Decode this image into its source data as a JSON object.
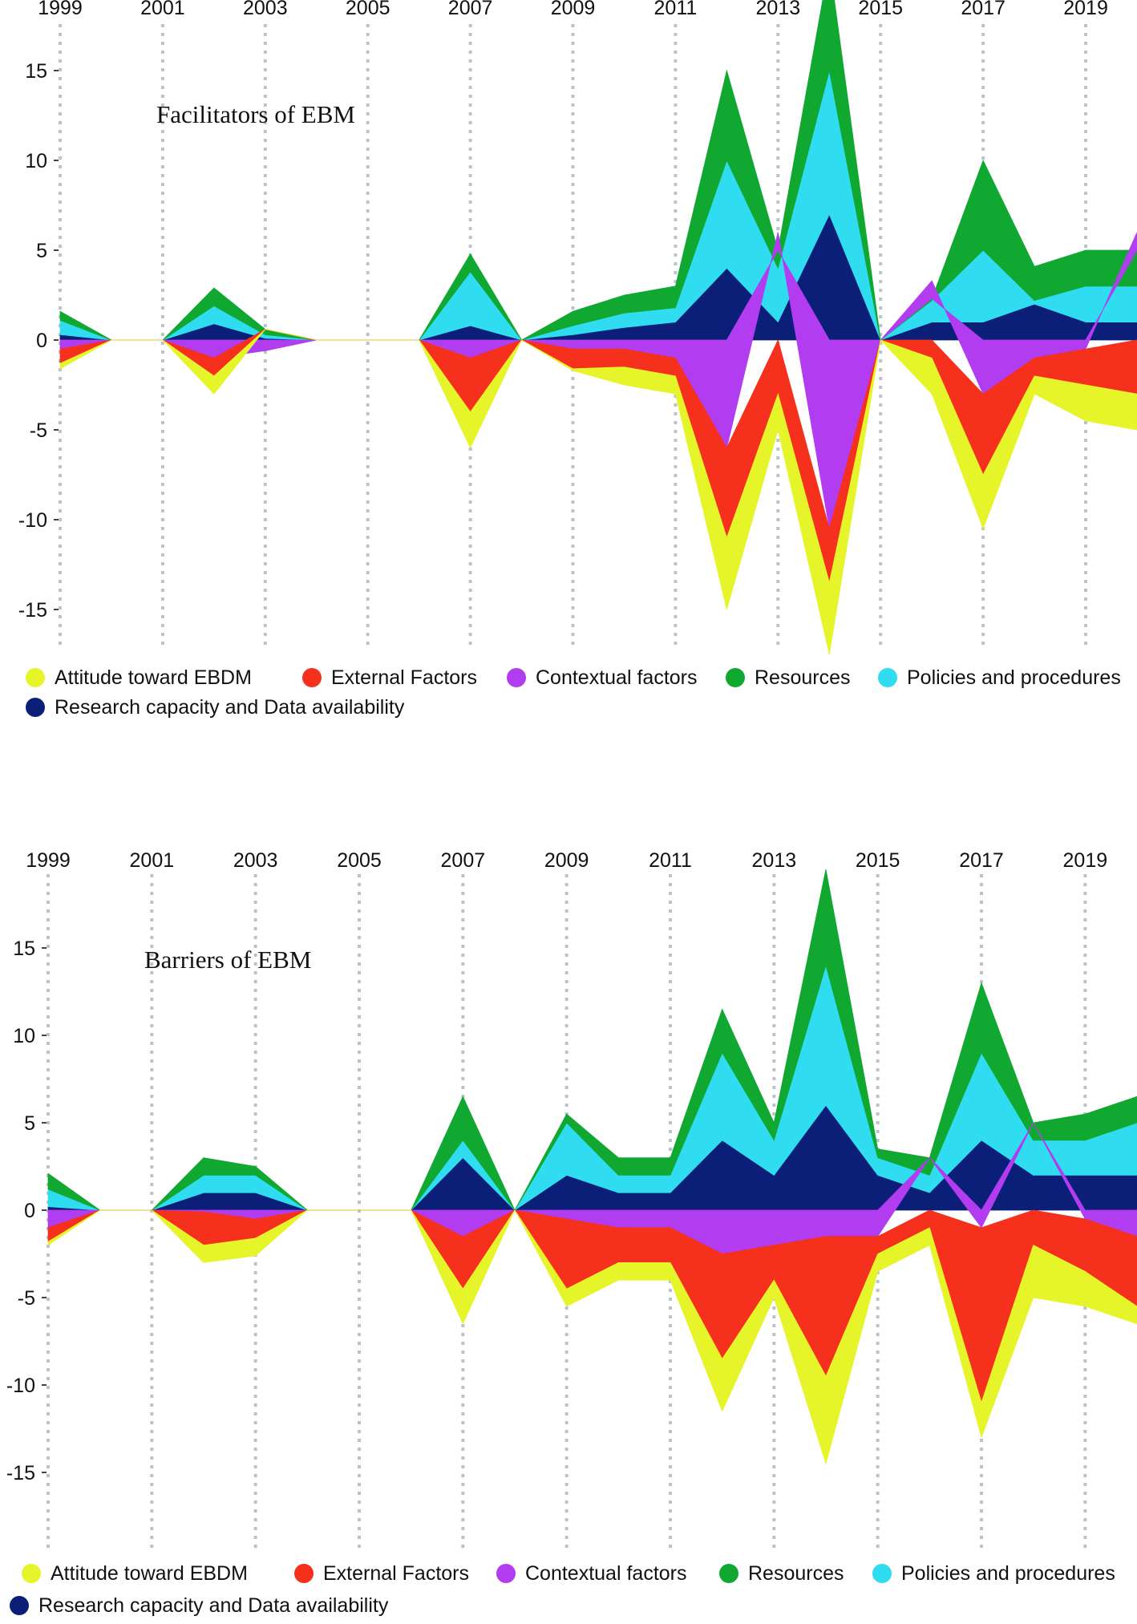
{
  "chart_data": [
    {
      "type": "area",
      "title": "Facilitators of EBM",
      "x_ticks": [
        "1999",
        "2001",
        "2003",
        "2005",
        "2007",
        "2009",
        "2011",
        "2013",
        "2015",
        "2017",
        "2019"
      ],
      "y_ticks": [
        "15",
        "10",
        "5",
        "0",
        "-5",
        "-10",
        "-15"
      ],
      "x": [
        1999,
        2000,
        2001,
        2002,
        2003,
        2004,
        2005,
        2006,
        2007,
        2008,
        2009,
        2010,
        2011,
        2012,
        2013,
        2014,
        2015,
        2016,
        2017,
        2018,
        2019,
        2020
      ],
      "xlim": [
        1999,
        2020
      ],
      "ylim": [
        -17.5,
        18
      ],
      "series": [
        {
          "name": "Research capacity and Data availability",
          "color": "#0b1f78",
          "values": [
            0.3,
            0,
            0,
            0.9,
            0.1,
            0,
            0,
            0,
            0.8,
            0,
            0.3,
            0.7,
            1.0,
            4.0,
            1.0,
            7.0,
            0,
            1.0,
            1.0,
            2.0,
            1.0,
            1.0
          ]
        },
        {
          "name": "Policies and procedures",
          "color": "#2fdcf0",
          "values": [
            0.8,
            0,
            0,
            1.0,
            0.2,
            0,
            0,
            0,
            3.0,
            0,
            0.5,
            0.8,
            0.8,
            6.0,
            3.0,
            8.0,
            0,
            1.2,
            4.0,
            0.2,
            2.0,
            2.0
          ]
        },
        {
          "name": "Resources",
          "color": "#11a832",
          "values": [
            0.5,
            0,
            0,
            1.0,
            0.3,
            0,
            0,
            0,
            1.0,
            0,
            0.8,
            1.0,
            1.2,
            5.0,
            1.0,
            6.0,
            0,
            0.1,
            5.0,
            1.9,
            2.0,
            2.0
          ]
        },
        {
          "name": "Contextual factors",
          "color": "#b23cf0",
          "values": [
            -0.5,
            0,
            0,
            -1.0,
            -0.6,
            0,
            0,
            0,
            -1.0,
            0,
            -0.5,
            -0.5,
            -1.0,
            -6.0,
            1.0,
            -10.5,
            0,
            1.0,
            -3.0,
            -1.0,
            -0.5,
            1.0
          ]
        },
        {
          "name": "External Factors",
          "color": "#f5301c",
          "values": [
            -0.8,
            0,
            0,
            -1.0,
            0,
            0,
            0,
            0,
            -3.0,
            0,
            -1.1,
            -1.0,
            -1.0,
            -5.0,
            -3.0,
            -3.0,
            0,
            -1.0,
            -4.5,
            -1.0,
            -2.0,
            -3.0
          ]
        },
        {
          "name": "Attitude toward EBDM",
          "color": "#e6f52a",
          "values": [
            -0.3,
            0,
            0,
            -1.0,
            0,
            0,
            0,
            0,
            -2.0,
            0,
            -0.1,
            -1.0,
            -1.0,
            -4.0,
            -2.0,
            -4.0,
            0,
            -2.0,
            -3.0,
            -1.0,
            -2.0,
            -2.0
          ]
        }
      ]
    },
    {
      "type": "area",
      "title": "Barriers of EBM",
      "x_ticks": [
        "1999",
        "2001",
        "2003",
        "2005",
        "2007",
        "2009",
        "2011",
        "2013",
        "2015",
        "2017",
        "2019"
      ],
      "y_ticks": [
        "15",
        "10",
        "5",
        "0",
        "-5",
        "-10",
        "-15"
      ],
      "x": [
        1999,
        2000,
        2001,
        2002,
        2003,
        2004,
        2005,
        2006,
        2007,
        2008,
        2009,
        2010,
        2011,
        2012,
        2013,
        2014,
        2015,
        2016,
        2017,
        2018,
        2019,
        2020
      ],
      "xlim": [
        1999,
        2020
      ],
      "ylim": [
        -19.5,
        19.5
      ],
      "series": [
        {
          "name": "Research capacity and Data availability",
          "color": "#0b1f78",
          "values": [
            0.2,
            0,
            0,
            1.0,
            1.0,
            0,
            0,
            0,
            3.0,
            0,
            2.0,
            1.0,
            1.0,
            4.0,
            2.0,
            6.0,
            2.0,
            1.0,
            4.0,
            2.0,
            2.0,
            2.0
          ]
        },
        {
          "name": "Policies and procedures",
          "color": "#2fdcf0",
          "values": [
            1.0,
            0,
            0,
            1.0,
            1.0,
            0,
            0,
            0,
            1.0,
            0,
            3.0,
            1.0,
            1.0,
            5.0,
            2.0,
            8.0,
            1.0,
            1.0,
            5.0,
            2.0,
            2.0,
            3.0
          ]
        },
        {
          "name": "Resources",
          "color": "#11a832",
          "values": [
            0.9,
            0,
            0,
            1.0,
            0.5,
            0,
            0,
            0,
            2.5,
            0,
            0.5,
            1.0,
            1.0,
            2.5,
            1.0,
            5.5,
            0.5,
            1.0,
            4.0,
            1.0,
            1.5,
            1.5
          ]
        },
        {
          "name": "Contextual factors",
          "color": "#b23cf0",
          "values": [
            -1.0,
            0,
            0,
            -0.1,
            -0.5,
            0,
            0,
            0,
            -1.5,
            0,
            -0.5,
            -1.0,
            -1.0,
            -2.5,
            -2.0,
            -1.5,
            -1.5,
            0,
            -1.0,
            0,
            -0.5,
            -1.5
          ]
        },
        {
          "name": "External Factors",
          "color": "#f5301c",
          "values": [
            -0.8,
            0,
            0,
            -1.9,
            -1.1,
            0,
            0,
            0,
            -3.0,
            0,
            -4.0,
            -2.0,
            -2.0,
            -6.0,
            -2.0,
            -8.0,
            -1.0,
            -1.0,
            -10.0,
            -2.0,
            -3.0,
            -4.0
          ]
        },
        {
          "name": "Attitude toward EBDM",
          "color": "#e6f52a",
          "values": [
            -0.2,
            0,
            0,
            -1.0,
            -1.0,
            0,
            0,
            0,
            -2.0,
            0,
            -1.0,
            -1.0,
            -1.0,
            -3.0,
            -1.0,
            -5.0,
            -1.0,
            -1.0,
            -2.0,
            -3.0,
            -2.0,
            -1.0
          ]
        }
      ]
    }
  ]
}
